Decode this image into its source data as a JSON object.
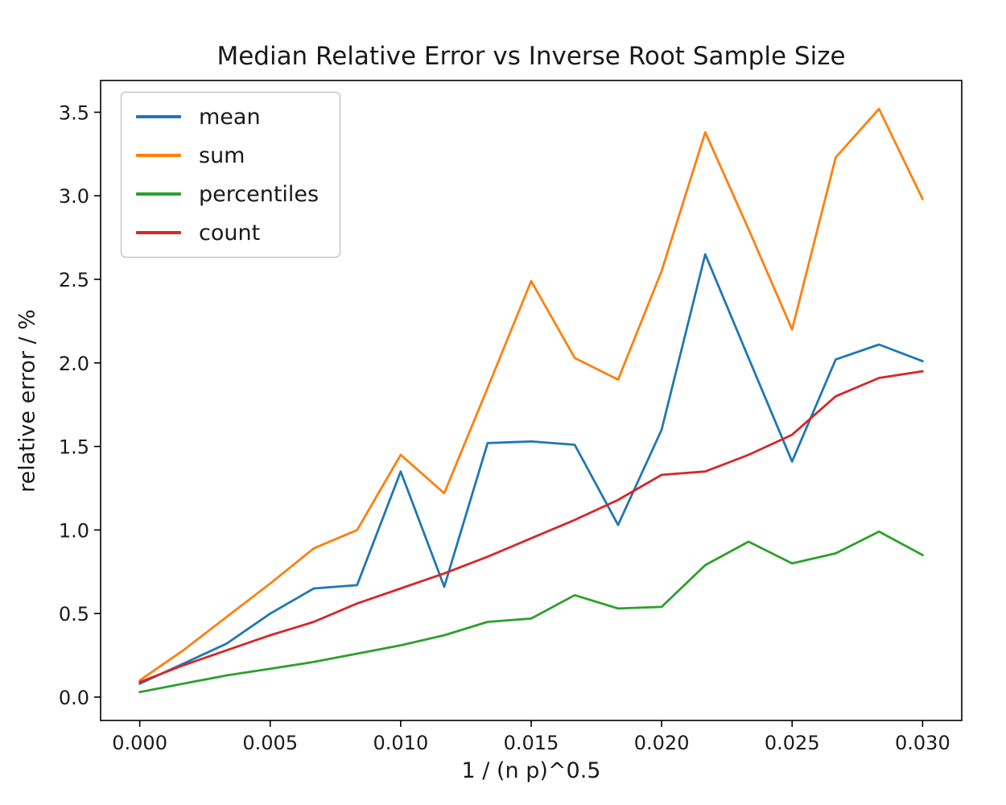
{
  "chart_data": {
    "type": "line",
    "title": "Median Relative Error vs Inverse Root Sample Size",
    "xlabel": "1 / (n p)^0.5",
    "ylabel": "relative error / %",
    "legend_position": "upper left",
    "grid": false,
    "xlim": [
      -0.0015,
      0.0315
    ],
    "ylim": [
      -0.14,
      3.69
    ],
    "xticks": {
      "values": [
        0.0,
        0.005,
        0.01,
        0.015,
        0.02,
        0.025,
        0.03
      ],
      "labels": [
        "0.000",
        "0.005",
        "0.010",
        "0.015",
        "0.020",
        "0.025",
        "0.030"
      ]
    },
    "yticks": {
      "values": [
        0.0,
        0.5,
        1.0,
        1.5,
        2.0,
        2.5,
        3.0,
        3.5
      ],
      "labels": [
        "0.0",
        "0.5",
        "1.0",
        "1.5",
        "2.0",
        "2.5",
        "3.0",
        "3.5"
      ]
    },
    "x": [
      0.0,
      0.00167,
      0.00333,
      0.005,
      0.00667,
      0.00833,
      0.01,
      0.01167,
      0.01333,
      0.015,
      0.01667,
      0.01833,
      0.02,
      0.02167,
      0.02333,
      0.025,
      0.02667,
      0.02833,
      0.03
    ],
    "series": [
      {
        "name": "mean",
        "color": "#1f77b4",
        "values": [
          0.08,
          0.2,
          0.32,
          0.5,
          0.65,
          0.67,
          1.35,
          0.66,
          1.52,
          1.53,
          1.51,
          1.03,
          1.6,
          2.65,
          2.03,
          1.41,
          2.02,
          2.11,
          2.01
        ]
      },
      {
        "name": "sum",
        "color": "#ff7f0e",
        "values": [
          0.1,
          0.28,
          0.48,
          0.68,
          0.89,
          1.0,
          1.45,
          1.22,
          1.85,
          2.49,
          2.03,
          1.9,
          2.55,
          3.38,
          2.8,
          2.2,
          3.23,
          3.52,
          2.98
        ]
      },
      {
        "name": "percentiles",
        "color": "#2ca02c",
        "values": [
          0.03,
          0.08,
          0.13,
          0.17,
          0.21,
          0.26,
          0.31,
          0.37,
          0.45,
          0.47,
          0.61,
          0.53,
          0.54,
          0.79,
          0.93,
          0.8,
          0.86,
          0.99,
          0.85
        ]
      },
      {
        "name": "count",
        "color": "#d62728",
        "values": [
          0.09,
          0.19,
          0.28,
          0.37,
          0.45,
          0.56,
          0.65,
          0.74,
          0.84,
          0.95,
          1.06,
          1.18,
          1.33,
          1.35,
          1.45,
          1.57,
          1.8,
          1.91,
          1.95
        ]
      }
    ]
  }
}
